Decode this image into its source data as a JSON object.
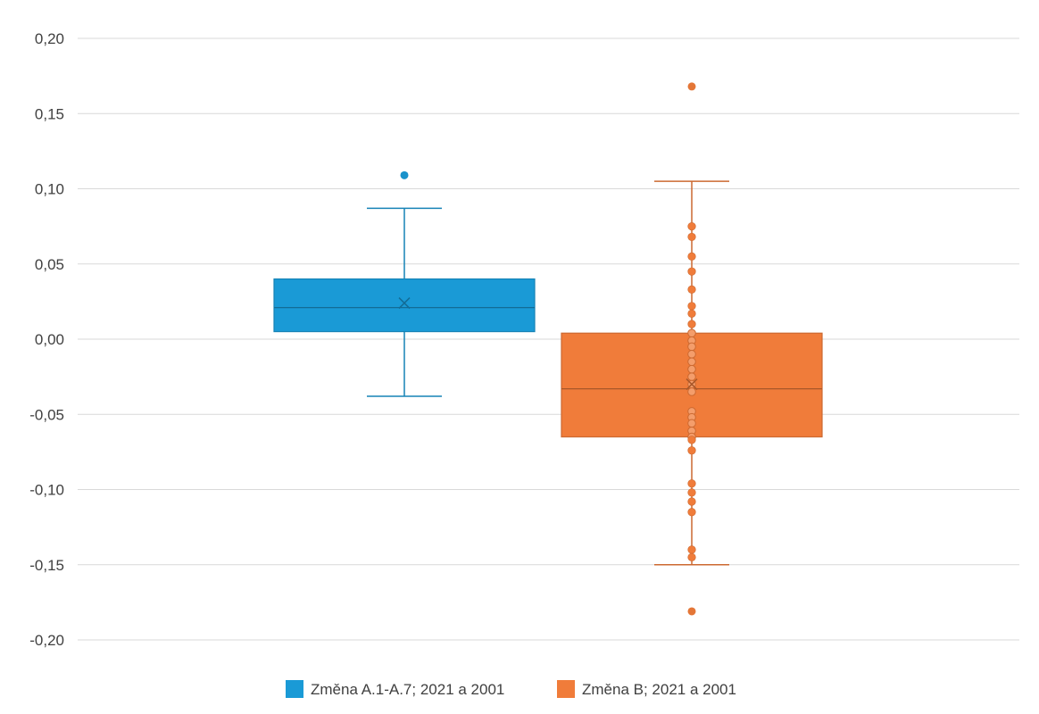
{
  "chart_data": {
    "type": "boxplot",
    "ylim": [
      -0.2,
      0.2
    ],
    "yticks": [
      "0,20",
      "0,15",
      "0,10",
      "0,05",
      "0,00",
      "-0,05",
      "-0,10",
      "-0,15",
      "-0,20"
    ],
    "ytick_values": [
      0.2,
      0.15,
      0.1,
      0.05,
      0.0,
      -0.05,
      -0.1,
      -0.15,
      -0.2
    ],
    "grid": true,
    "legend": {
      "position": "bottom"
    },
    "series": [
      {
        "name": "Změna A.1-A.7; 2021 a 2001",
        "color": "#1a9ad6",
        "whisker_low": -0.038,
        "q1": 0.005,
        "median": 0.021,
        "mean": 0.024,
        "q3": 0.04,
        "whisker_high": 0.087,
        "outliers": [
          0.109
        ],
        "points": []
      },
      {
        "name": "Změna B; 2021 a 2001",
        "color": "#f07c3a",
        "whisker_low": -0.15,
        "q1": -0.065,
        "median": -0.033,
        "mean": -0.03,
        "q3": 0.004,
        "whisker_high": 0.105,
        "outliers": [
          0.168,
          -0.181
        ],
        "points": [
          0.075,
          0.068,
          0.055,
          0.045,
          0.033,
          0.022,
          0.017,
          0.01,
          0.004,
          -0.001,
          -0.005,
          -0.01,
          -0.015,
          -0.02,
          -0.025,
          -0.03,
          -0.035,
          -0.048,
          -0.052,
          -0.056,
          -0.061,
          -0.065,
          -0.067,
          -0.074,
          -0.096,
          -0.102,
          -0.108,
          -0.115,
          -0.14,
          -0.145
        ]
      }
    ]
  }
}
